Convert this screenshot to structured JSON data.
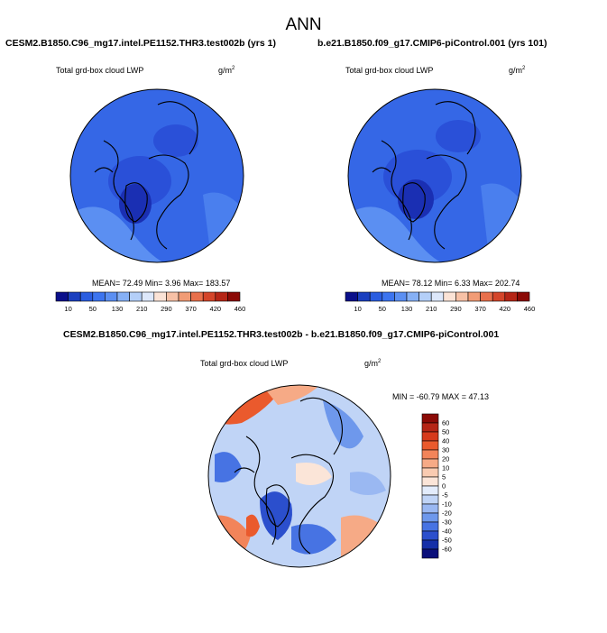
{
  "title": "ANN",
  "panels": [
    {
      "case": "CESM2.B1850.C96_mg17.intel.PE1152.THR3.test002b (yrs 1)",
      "variable": "Total grd-box cloud LWP",
      "units_base": "g/m",
      "units_exp": "2",
      "stats": "MEAN=  72.49  Min=   3.96  Max= 183.57",
      "colorbar_labels": [
        "10",
        "50",
        "130",
        "210",
        "290",
        "370",
        "420",
        "460"
      ]
    },
    {
      "case": "b.e21.B1850.f09_g17.CMIP6-piControl.001 (yrs 101)",
      "variable": "Total grd-box cloud LWP",
      "units_base": "g/m",
      "units_exp": "2",
      "stats": "MEAN=  78.12  Min=   6.33  Max= 202.74",
      "colorbar_labels": [
        "10",
        "50",
        "130",
        "210",
        "290",
        "370",
        "420",
        "460"
      ]
    }
  ],
  "diff": {
    "case": "CESM2.B1850.C96_mg17.intel.PE1152.THR3.test002b - b.e21.B1850.f09_g17.CMIP6-piControl.001",
    "variable": "Total grd-box cloud LWP",
    "units_base": "g/m",
    "units_exp": "2",
    "stats": "MIN = -60.79  MAX =  47.13",
    "colorbar_labels": [
      "60",
      "50",
      "40",
      "30",
      "20",
      "10",
      "5",
      "0",
      "-5",
      "-10",
      "-20",
      "-30",
      "-40",
      "-50",
      "-60"
    ]
  },
  "colors": {
    "abs_scale": [
      "#0a0f8a",
      "#1a3fbf",
      "#2a5de0",
      "#3c74ef",
      "#5b8ff2",
      "#86b0f5",
      "#b4cff8",
      "#dde8fb",
      "#fbe3d6",
      "#f7c1a6",
      "#f19c76",
      "#e8704c",
      "#d4452a",
      "#b52516",
      "#8b0a06"
    ],
    "diff_scale": [
      "#8b0a06",
      "#b52516",
      "#d63a1c",
      "#ea5a2d",
      "#f2845a",
      "#f6aa86",
      "#f9cbb1",
      "#fbe5d8",
      "#e3ecfb",
      "#c0d4f6",
      "#9ab8f2",
      "#6e98ec",
      "#4773e3",
      "#2b4fcd",
      "#152fa8",
      "#0a0f7a"
    ],
    "land_line": "#000000"
  }
}
